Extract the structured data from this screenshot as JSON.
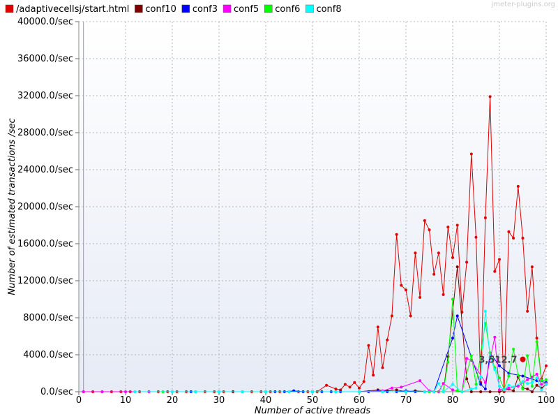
{
  "watermark": "jmeter-plugins.org",
  "chart_data": {
    "type": "line",
    "title": "",
    "xlabel": "Number of active threads",
    "ylabel": "Number of estimated transactions /sec",
    "xlim": [
      0,
      100
    ],
    "ylim": [
      0,
      40000
    ],
    "x_ticks": [
      0,
      10,
      20,
      30,
      40,
      50,
      60,
      70,
      80,
      90,
      100
    ],
    "y_ticks": [
      0,
      4000,
      8000,
      12000,
      16000,
      20000,
      24000,
      28000,
      32000,
      36000,
      40000
    ],
    "y_tick_suffix": ".0/sec",
    "grid": true,
    "legend_position": "top",
    "highlight": {
      "x": 95,
      "y": 3500,
      "label": "3,512.7",
      "color": "#e00000"
    },
    "series": [
      {
        "name": "/adaptivecellsj/start.html",
        "color": "#e00000",
        "points": [
          [
            1,
            0
          ],
          [
            3,
            0
          ],
          [
            5,
            0
          ],
          [
            7,
            0
          ],
          [
            9,
            0
          ],
          [
            11,
            0
          ],
          [
            13,
            0
          ],
          [
            15,
            0
          ],
          [
            17,
            0
          ],
          [
            19,
            0
          ],
          [
            21,
            0
          ],
          [
            23,
            0
          ],
          [
            25,
            0
          ],
          [
            27,
            0
          ],
          [
            29,
            0
          ],
          [
            31,
            0
          ],
          [
            33,
            0
          ],
          [
            35,
            0
          ],
          [
            37,
            0
          ],
          [
            39,
            0
          ],
          [
            41,
            0
          ],
          [
            43,
            0
          ],
          [
            45,
            0
          ],
          [
            47,
            0
          ],
          [
            49,
            0
          ],
          [
            51,
            0
          ],
          [
            53,
            700
          ],
          [
            55,
            300
          ],
          [
            56,
            200
          ],
          [
            57,
            800
          ],
          [
            58,
            500
          ],
          [
            59,
            1000
          ],
          [
            60,
            400
          ],
          [
            61,
            1100
          ],
          [
            62,
            5000
          ],
          [
            63,
            1800
          ],
          [
            64,
            7000
          ],
          [
            65,
            2600
          ],
          [
            66,
            5600
          ],
          [
            67,
            8200
          ],
          [
            68,
            17000
          ],
          [
            69,
            11500
          ],
          [
            70,
            11000
          ],
          [
            71,
            8200
          ],
          [
            72,
            15000
          ],
          [
            73,
            10200
          ],
          [
            74,
            18500
          ],
          [
            75,
            17500
          ],
          [
            76,
            12700
          ],
          [
            77,
            15000
          ],
          [
            78,
            10500
          ],
          [
            79,
            17800
          ],
          [
            80,
            14500
          ],
          [
            81,
            18000
          ],
          [
            82,
            8600
          ],
          [
            83,
            14000
          ],
          [
            84,
            25700
          ],
          [
            85,
            16700
          ],
          [
            86,
            1000
          ],
          [
            87,
            18800
          ],
          [
            88,
            31900
          ],
          [
            89,
            13000
          ],
          [
            90,
            14300
          ],
          [
            91,
            0
          ],
          [
            92,
            17300
          ],
          [
            93,
            16600
          ],
          [
            94,
            22200
          ],
          [
            95,
            16600
          ],
          [
            96,
            8700
          ],
          [
            97,
            13500
          ],
          [
            98,
            5800
          ],
          [
            99,
            1400
          ],
          [
            100,
            2800
          ]
        ]
      },
      {
        "name": "conf10",
        "color": "#800000",
        "points": [
          [
            33,
            0
          ],
          [
            50,
            0
          ],
          [
            55,
            0
          ],
          [
            60,
            0
          ],
          [
            64,
            200
          ],
          [
            66,
            100
          ],
          [
            68,
            200
          ],
          [
            70,
            0
          ],
          [
            72,
            100
          ],
          [
            75,
            0
          ],
          [
            78,
            0
          ],
          [
            79,
            3800
          ],
          [
            81,
            13500
          ],
          [
            83,
            1400
          ],
          [
            84,
            0
          ],
          [
            86,
            0
          ],
          [
            88,
            0
          ],
          [
            90,
            0
          ],
          [
            92,
            300
          ],
          [
            93,
            100
          ],
          [
            94,
            1600
          ],
          [
            95,
            400
          ],
          [
            96,
            300
          ],
          [
            97,
            0
          ],
          [
            98,
            700
          ],
          [
            99,
            400
          ],
          [
            100,
            800
          ]
        ]
      },
      {
        "name": "conf3",
        "color": "#0000ff",
        "points": [
          [
            24,
            0
          ],
          [
            30,
            0
          ],
          [
            40,
            0
          ],
          [
            42,
            0
          ],
          [
            44,
            0
          ],
          [
            46,
            100
          ],
          [
            48,
            0
          ],
          [
            50,
            0
          ],
          [
            52,
            0
          ],
          [
            54,
            0
          ],
          [
            56,
            0
          ],
          [
            60,
            0
          ],
          [
            62,
            0
          ],
          [
            64,
            100
          ],
          [
            66,
            0
          ],
          [
            68,
            0
          ],
          [
            70,
            100
          ],
          [
            72,
            0
          ],
          [
            74,
            0
          ],
          [
            76,
            0
          ],
          [
            80,
            5800
          ],
          [
            81,
            8200
          ],
          [
            86,
            800
          ],
          [
            87,
            300
          ],
          [
            88,
            4200
          ],
          [
            90,
            2800
          ],
          [
            92,
            2000
          ],
          [
            95,
            1700
          ],
          [
            98,
            1200
          ],
          [
            100,
            1000
          ]
        ]
      },
      {
        "name": "conf5",
        "color": "#ff00ff",
        "points": [
          [
            1,
            0
          ],
          [
            5,
            0
          ],
          [
            10,
            0
          ],
          [
            12,
            0
          ],
          [
            15,
            0
          ],
          [
            20,
            0
          ],
          [
            25,
            0
          ],
          [
            30,
            0
          ],
          [
            35,
            0
          ],
          [
            40,
            0
          ],
          [
            45,
            0
          ],
          [
            50,
            0
          ],
          [
            55,
            0
          ],
          [
            60,
            0
          ],
          [
            65,
            100
          ],
          [
            67,
            400
          ],
          [
            69,
            500
          ],
          [
            73,
            1200
          ],
          [
            75,
            100
          ],
          [
            77,
            0
          ],
          [
            78,
            900
          ],
          [
            80,
            200
          ],
          [
            82,
            0
          ],
          [
            83,
            3600
          ],
          [
            84,
            3400
          ],
          [
            87,
            1000
          ],
          [
            89,
            5900
          ],
          [
            90,
            200
          ],
          [
            92,
            400
          ],
          [
            94,
            600
          ],
          [
            96,
            1300
          ],
          [
            97,
            1600
          ],
          [
            98,
            1900
          ],
          [
            99,
            800
          ],
          [
            100,
            900
          ]
        ]
      },
      {
        "name": "conf6",
        "color": "#00ff00",
        "points": [
          [
            18,
            0
          ],
          [
            25,
            0
          ],
          [
            30,
            0
          ],
          [
            35,
            0
          ],
          [
            40,
            0
          ],
          [
            45,
            0
          ],
          [
            50,
            0
          ],
          [
            55,
            0
          ],
          [
            60,
            0
          ],
          [
            65,
            0
          ],
          [
            70,
            0
          ],
          [
            75,
            0
          ],
          [
            76,
            0
          ],
          [
            78,
            0
          ],
          [
            79,
            3200
          ],
          [
            80,
            10000
          ],
          [
            81,
            100
          ],
          [
            82,
            0
          ],
          [
            84,
            3900
          ],
          [
            85,
            800
          ],
          [
            87,
            7400
          ],
          [
            88,
            4200
          ],
          [
            89,
            2600
          ],
          [
            90,
            1500
          ],
          [
            91,
            300
          ],
          [
            92,
            1700
          ],
          [
            93,
            4600
          ],
          [
            94,
            1800
          ],
          [
            95,
            300
          ],
          [
            96,
            3900
          ],
          [
            97,
            600
          ],
          [
            98,
            5400
          ],
          [
            99,
            1200
          ],
          [
            100,
            1300
          ]
        ]
      },
      {
        "name": "conf8",
        "color": "#00ffff",
        "points": [
          [
            12,
            0
          ],
          [
            20,
            0
          ],
          [
            25,
            0
          ],
          [
            30,
            0
          ],
          [
            35,
            0
          ],
          [
            40,
            0
          ],
          [
            45,
            0
          ],
          [
            50,
            0
          ],
          [
            55,
            0
          ],
          [
            60,
            0
          ],
          [
            65,
            0
          ],
          [
            70,
            0
          ],
          [
            74,
            0
          ],
          [
            76,
            0
          ],
          [
            77,
            900
          ],
          [
            78,
            0
          ],
          [
            80,
            800
          ],
          [
            82,
            0
          ],
          [
            84,
            300
          ],
          [
            85,
            400
          ],
          [
            86,
            1600
          ],
          [
            87,
            8700
          ],
          [
            88,
            3700
          ],
          [
            89,
            2400
          ],
          [
            90,
            600
          ],
          [
            91,
            200
          ],
          [
            92,
            700
          ],
          [
            93,
            500
          ],
          [
            95,
            1100
          ],
          [
            96,
            900
          ],
          [
            97,
            1000
          ],
          [
            98,
            1500
          ],
          [
            99,
            200
          ],
          [
            100,
            800
          ]
        ]
      }
    ]
  }
}
